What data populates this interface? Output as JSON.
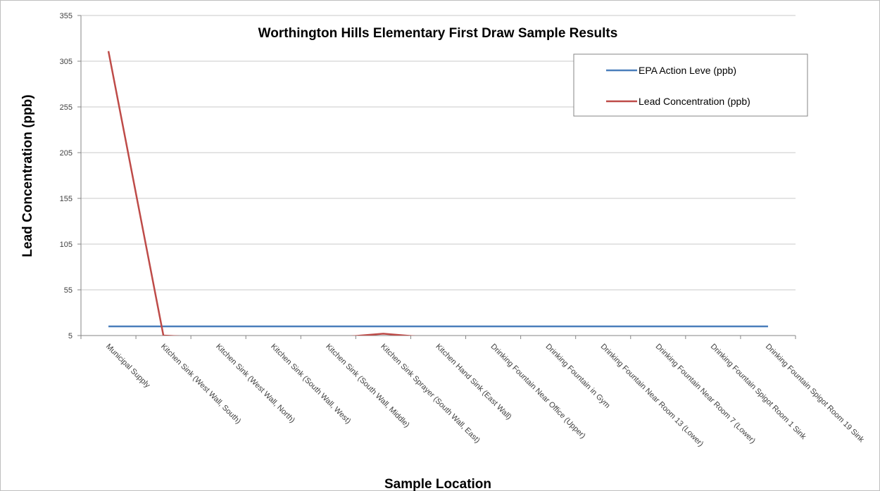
{
  "chart_data": {
    "type": "line",
    "title": "Worthington Hills Elementary First Draw Sample Results",
    "x_label": "Sample Location",
    "y_label": "Lead Concentration (ppb)",
    "categories": [
      "Municipal Supply",
      "Kitchen Sink (West Wall, South)",
      "Kitchen Sink (West Wall, North)",
      "Kitchen Sink (South Wall, West)",
      "Kitchen Sink (South Wall, Middle)",
      "Kitchen Sink Sprayer (South Wall, East)",
      "Kitchen Hand Sink (East Wall)",
      "Drinking Fountain Near Office (Upper)",
      "Drinking Fountain in Gym",
      "Drinking Fountain Near Room 13 (Lower)",
      "Drinking Fountain Near Room 7 (Lower)",
      "Drinking Fountain Spigot Room 1 Sink",
      "Drinking Fountain Spigot Room 19 Sink"
    ],
    "series": [
      {
        "name": "EPA Action Leve (ppb)",
        "color": "#4a7ebb",
        "values": [
          15,
          15,
          15,
          15,
          15,
          15,
          15,
          15,
          15,
          15,
          15,
          15,
          15
        ]
      },
      {
        "name": "Lead Concentration (ppb)",
        "color": "#be4b48",
        "values": [
          316,
          5,
          2,
          2,
          2,
          7,
          2,
          2,
          2,
          2,
          2,
          2,
          2
        ]
      }
    ],
    "ylim": [
      5,
      355
    ],
    "yticks": [
      5,
      55,
      105,
      155,
      205,
      255,
      305,
      355
    ],
    "grid": true,
    "legend": "upper right"
  }
}
